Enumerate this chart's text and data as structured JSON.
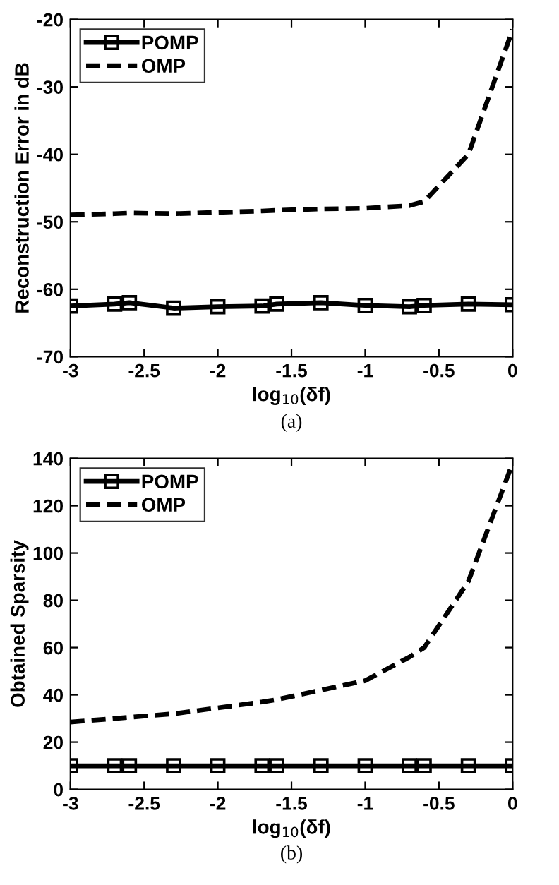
{
  "chart_data": [
    {
      "type": "line",
      "xlabel": "log$_{10}$(δf)",
      "ylabel": "Reconstruction Error in dB",
      "annotations": [
        "(a)"
      ],
      "xlim": [
        -3,
        0
      ],
      "ylim": [
        -70,
        -20
      ],
      "xticks": [
        {
          "value": -3,
          "label": "-3"
        },
        {
          "value": -2.5,
          "label": "-2.5"
        },
        {
          "value": -2,
          "label": "-2"
        },
        {
          "value": -1.5,
          "label": "-1.5"
        },
        {
          "value": -1,
          "label": "-1"
        },
        {
          "value": -0.5,
          "label": "-0.5"
        },
        0
      ],
      "yticks": [
        {
          "value": -70,
          "label": "-70"
        },
        {
          "value": -60,
          "label": "-60"
        },
        {
          "value": -50,
          "label": "-50"
        },
        {
          "value": -40,
          "label": "-40"
        },
        {
          "value": -30,
          "label": "-30"
        },
        {
          "value": -20,
          "label": "-20"
        }
      ],
      "grid": false,
      "legend": "top left",
      "x": [
        -3,
        -2.7,
        -2.6,
        -2.3,
        -2,
        -1.7,
        -1.6,
        -1.3,
        -1,
        -0.7,
        -0.6,
        -0.3,
        0
      ],
      "series": [
        {
          "name": "POMP",
          "color": "#000000",
          "marker": "square",
          "line_style": "solid",
          "values": [
            -62.5,
            -62.2,
            -62,
            -62.8,
            -62.6,
            -62.5,
            -62.2,
            -62,
            -62.4,
            -62.6,
            -62.4,
            -62.2,
            -62.3
          ]
        },
        {
          "name": "OMP",
          "color": "#000000",
          "marker": "none",
          "line_style": "dashed",
          "values": [
            -49,
            -48.8,
            -48.7,
            -48.8,
            -48.6,
            -48.4,
            -48.3,
            -48.1,
            -48,
            -47.6,
            -47,
            -40,
            -21.5
          ]
        }
      ]
    },
    {
      "type": "line",
      "xlabel": "log$_{10}$(δf)",
      "ylabel": "Obtained Sparsity",
      "annotations": [
        "(b)"
      ],
      "xlim": [
        -3,
        0
      ],
      "ylim": [
        0,
        140
      ],
      "xticks": [
        {
          "value": -3,
          "label": "-3"
        },
        {
          "value": -2.5,
          "label": "-2.5"
        },
        {
          "value": -2,
          "label": "-2"
        },
        {
          "value": -1.5,
          "label": "-1.5"
        },
        {
          "value": -1,
          "label": "-1"
        },
        {
          "value": -0.5,
          "label": "-0.5"
        },
        0
      ],
      "yticks": [
        0,
        20,
        40,
        60,
        80,
        100,
        120,
        140
      ],
      "grid": false,
      "legend": "top left",
      "x": [
        -3,
        -2.7,
        -2.6,
        -2.3,
        -2,
        -1.7,
        -1.6,
        -1.3,
        -1,
        -0.7,
        -0.6,
        -0.3,
        0
      ],
      "series": [
        {
          "name": "POMP",
          "color": "#000000",
          "marker": "square",
          "line_style": "solid",
          "values": [
            10,
            10,
            10,
            10,
            10,
            10,
            10,
            10,
            10,
            10,
            10,
            10,
            10
          ]
        },
        {
          "name": "OMP",
          "color": "#000000",
          "marker": "none",
          "line_style": "dashed",
          "values": [
            28.5,
            30,
            30.5,
            32,
            34.5,
            37,
            38,
            42,
            46,
            56,
            60,
            88,
            138
          ]
        }
      ]
    }
  ]
}
